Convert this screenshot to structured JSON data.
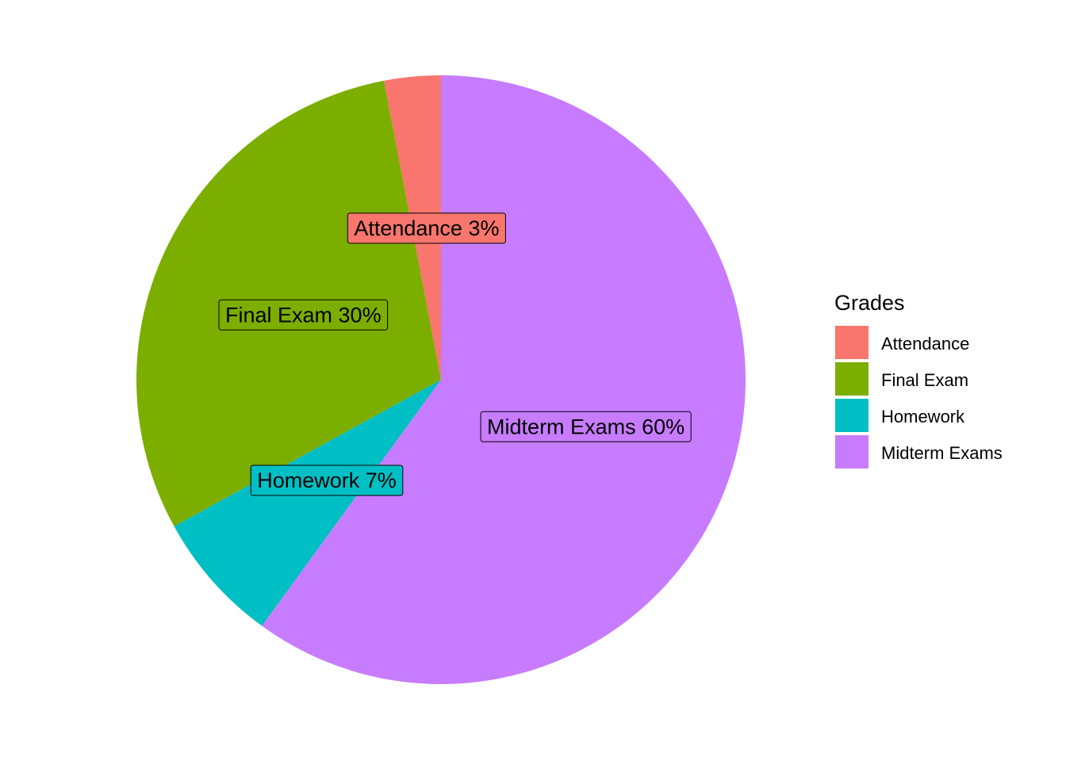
{
  "chart_data": {
    "type": "pie",
    "categories": [
      "Attendance",
      "Final Exam",
      "Homework",
      "Midterm Exams"
    ],
    "values": [
      3,
      30,
      7,
      60
    ],
    "unit": "%",
    "slice_labels": [
      "Attendance 3%",
      "Final Exam 30%",
      "Homework 7%",
      "Midterm Exams 60%"
    ],
    "colors": [
      "#F8766D",
      "#7CAE00",
      "#00BFC4",
      "#C77CFF"
    ],
    "legend": {
      "title": "Grades",
      "entries": [
        "Attendance",
        "Final Exam",
        "Homework",
        "Midterm Exams"
      ],
      "placement": "right"
    },
    "start_angle": "12 o'clock",
    "direction": "counterclockwise"
  }
}
